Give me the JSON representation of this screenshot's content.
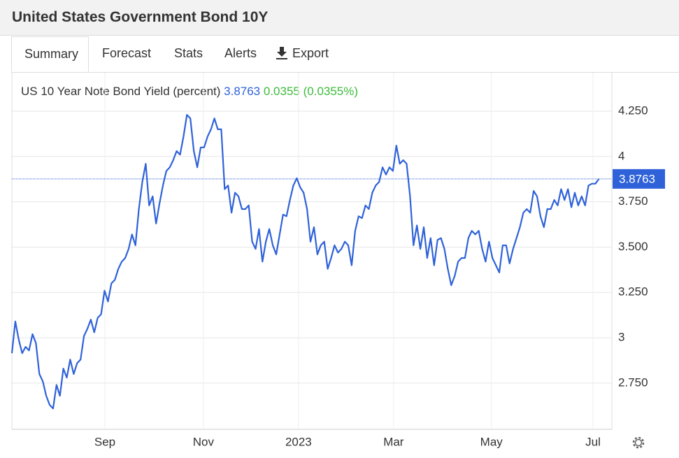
{
  "header": {
    "title": "United States Government Bond 10Y"
  },
  "tabs": [
    "Summary",
    "Forecast",
    "Stats",
    "Alerts",
    "Export"
  ],
  "chart_data": {
    "type": "line",
    "title": "US 10 Year Note Bond Yield (percent)",
    "change": 0.0355,
    "change_label": "(0.0355%)",
    "color": "#2f62d9",
    "values": [
      2.915,
      3.09,
      2.99,
      2.915,
      2.95,
      2.93,
      3.02,
      2.97,
      2.8,
      2.76,
      2.68,
      2.63,
      2.61,
      2.74,
      2.68,
      2.83,
      2.78,
      2.88,
      2.8,
      2.86,
      2.88,
      3.01,
      3.05,
      3.1,
      3.03,
      3.11,
      3.13,
      3.26,
      3.2,
      3.3,
      3.32,
      3.38,
      3.42,
      3.44,
      3.49,
      3.57,
      3.51,
      3.71,
      3.86,
      3.96,
      3.73,
      3.78,
      3.63,
      3.74,
      3.84,
      3.92,
      3.94,
      3.98,
      4.03,
      4.01,
      4.11,
      4.23,
      4.21,
      4.03,
      3.94,
      4.05,
      4.05,
      4.11,
      4.15,
      4.21,
      4.15,
      4.15,
      3.82,
      3.84,
      3.69,
      3.8,
      3.78,
      3.71,
      3.71,
      3.73,
      3.53,
      3.49,
      3.6,
      3.42,
      3.53,
      3.6,
      3.51,
      3.46,
      3.57,
      3.68,
      3.67,
      3.76,
      3.84,
      3.88,
      3.83,
      3.8,
      3.71,
      3.53,
      3.61,
      3.46,
      3.51,
      3.53,
      3.38,
      3.44,
      3.51,
      3.47,
      3.49,
      3.53,
      3.51,
      3.4,
      3.59,
      3.67,
      3.66,
      3.73,
      3.71,
      3.8,
      3.84,
      3.86,
      3.94,
      3.9,
      3.94,
      3.92,
      4.06,
      3.96,
      3.98,
      3.96,
      3.78,
      3.51,
      3.62,
      3.49,
      3.61,
      3.44,
      3.55,
      3.4,
      3.54,
      3.55,
      3.49,
      3.38,
      3.29,
      3.34,
      3.42,
      3.44,
      3.44,
      3.55,
      3.59,
      3.57,
      3.59,
      3.49,
      3.42,
      3.53,
      3.44,
      3.4,
      3.36,
      3.51,
      3.51,
      3.41,
      3.49,
      3.55,
      3.61,
      3.69,
      3.71,
      3.69,
      3.81,
      3.78,
      3.67,
      3.61,
      3.71,
      3.71,
      3.76,
      3.73,
      3.82,
      3.76,
      3.82,
      3.72,
      3.8,
      3.73,
      3.78,
      3.73,
      3.84,
      3.85,
      3.85,
      3.8763
    ],
    "xlim": [
      0,
      175
    ],
    "xticks": [
      {
        "value": 27.1,
        "label": "Sep"
      },
      {
        "value": 55.8,
        "label": "Nov"
      },
      {
        "value": 83.5,
        "label": "2023"
      },
      {
        "value": 111.2,
        "label": "Mar"
      },
      {
        "value": 139.7,
        "label": "May"
      },
      {
        "value": 169.3,
        "label": "Jul"
      }
    ],
    "ylim": [
      2.495,
      4.462
    ],
    "yticks": [
      {
        "value": 2.75,
        "label": "2.750"
      },
      3,
      {
        "value": 3.25,
        "label": "3.250"
      },
      {
        "value": 3.5,
        "label": "3.500"
      },
      {
        "value": 3.75,
        "label": "3.750"
      },
      4,
      {
        "value": 4.25,
        "label": "4.250"
      }
    ],
    "grid": true
  }
}
